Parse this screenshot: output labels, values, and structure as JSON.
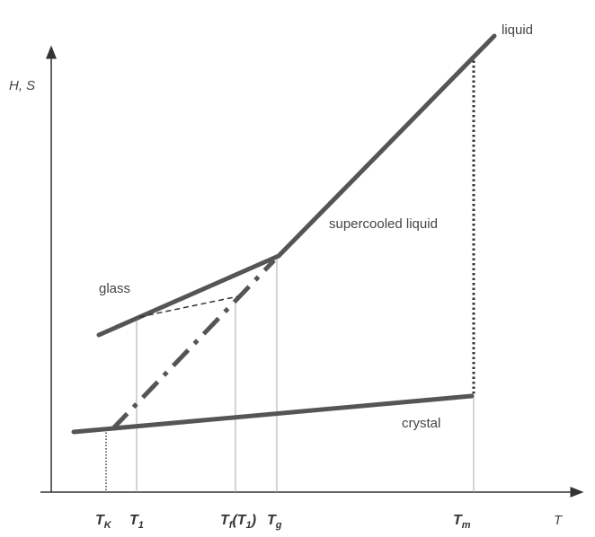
{
  "axes": {
    "y_label": "H, S",
    "x_label": "T"
  },
  "curves": {
    "liquid": "liquid",
    "supercooled": "supercooled liquid",
    "glass": "glass",
    "crystal": "crystal"
  },
  "temperatures": [
    {
      "parts": [
        {
          "text": "T"
        },
        {
          "sub": "K"
        }
      ]
    },
    {
      "parts": [
        {
          "text": "T"
        },
        {
          "sub": "1"
        }
      ]
    },
    {
      "parts": [
        {
          "text": "T"
        },
        {
          "sub": "f"
        },
        {
          "text": "(T"
        },
        {
          "sub": "1"
        },
        {
          "text": ")"
        }
      ]
    },
    {
      "parts": [
        {
          "text": "T"
        },
        {
          "sub": "g"
        }
      ]
    },
    {
      "parts": [
        {
          "text": "T"
        },
        {
          "sub": "m"
        }
      ]
    }
  ]
}
